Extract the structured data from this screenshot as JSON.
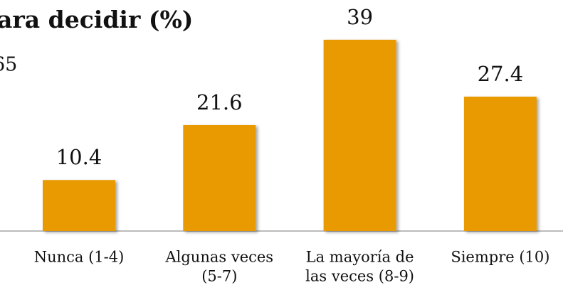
{
  "chart_data": {
    "type": "bar",
    "title": "ara decidir (%)",
    "note": "65",
    "categories": [
      [
        "Nunca (1-4)"
      ],
      [
        "Algunas veces",
        "(5-7)"
      ],
      [
        "La mayoría de",
        "las veces (8-9)"
      ],
      [
        "Siempre (10)"
      ]
    ],
    "values": [
      10.4,
      21.6,
      39,
      27.4
    ],
    "color": "#e99a00"
  }
}
